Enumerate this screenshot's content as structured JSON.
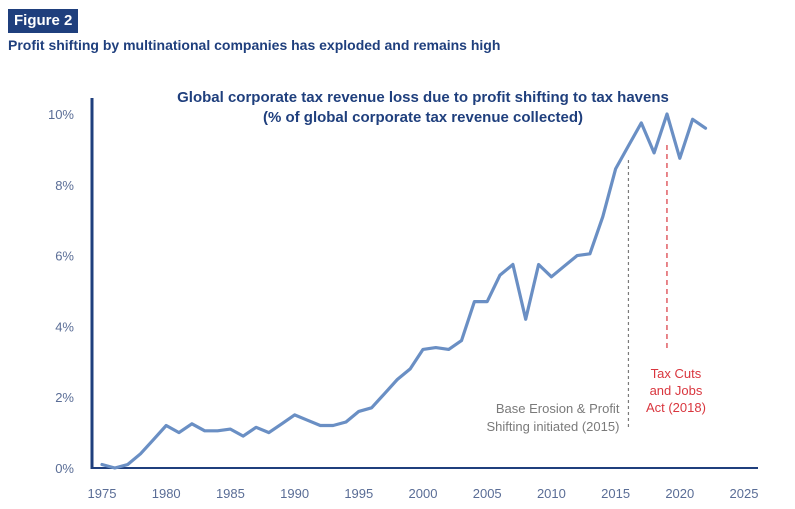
{
  "figure": {
    "badge": "Figure 2",
    "subtitle": "Profit shifting by multinational companies has exploded and remains high"
  },
  "colors": {
    "brand": "#1f3f7d",
    "line": "#6a8fc4",
    "axis": "#1f3f7d",
    "annotation_gray": "#7a7a7a",
    "annotation_red": "#d9363e"
  },
  "chart_data": {
    "type": "line",
    "title": "Global corporate tax revenue loss due to profit shifting to tax havens",
    "subtitle": "(% of global corporate tax revenue collected)",
    "xlabel": "",
    "ylabel": "",
    "xlim": [
      1974,
      2026
    ],
    "ylim": [
      0,
      10
    ],
    "grid": false,
    "x_ticks": [
      1975,
      1980,
      1985,
      1990,
      1995,
      2000,
      2005,
      2010,
      2015,
      2020,
      2025
    ],
    "y_ticks": [
      0,
      2,
      4,
      6,
      8,
      10
    ],
    "y_tick_labels": [
      "0%",
      "2%",
      "4%",
      "6%",
      "8%",
      "10%"
    ],
    "series": [
      {
        "x": [
          1975,
          1976,
          1977,
          1978,
          1979,
          1980,
          1981,
          1982,
          1983,
          1984,
          1985,
          1986,
          1987,
          1988,
          1989,
          1990,
          1991,
          1992,
          1993,
          1994,
          1995,
          1996,
          1997,
          1998,
          1999,
          2000,
          2001,
          2002,
          2003,
          2004,
          2005,
          2006,
          2007,
          2008,
          2009,
          2010,
          2011,
          2012,
          2013,
          2014,
          2015,
          2016,
          2017,
          2018,
          2019,
          2020,
          2021,
          2022,
          2023
        ],
        "values": [
          0.1,
          0.0,
          0.1,
          0.4,
          0.8,
          1.2,
          1.0,
          1.25,
          1.05,
          1.05,
          1.1,
          0.9,
          1.15,
          1.0,
          1.25,
          1.5,
          1.35,
          1.2,
          1.2,
          1.3,
          1.6,
          1.7,
          2.1,
          2.5,
          2.8,
          3.35,
          3.4,
          3.35,
          3.6,
          4.7,
          4.7,
          5.45,
          5.75,
          4.2,
          5.75,
          5.4,
          5.7,
          6.0,
          6.05,
          7.1,
          8.45,
          9.1,
          9.75,
          8.9,
          10.0,
          8.75,
          9.85,
          9.6,
          null
        ]
      }
    ],
    "annotations": [
      {
        "x": 2016,
        "label_lines": [
          "Base Erosion & Profit",
          "Shifting initiated (2015)"
        ],
        "color": "gray"
      },
      {
        "x": 2019,
        "label_lines": [
          "Tax Cuts",
          "and Jobs",
          "Act (2018)"
        ],
        "color": "red"
      }
    ]
  }
}
